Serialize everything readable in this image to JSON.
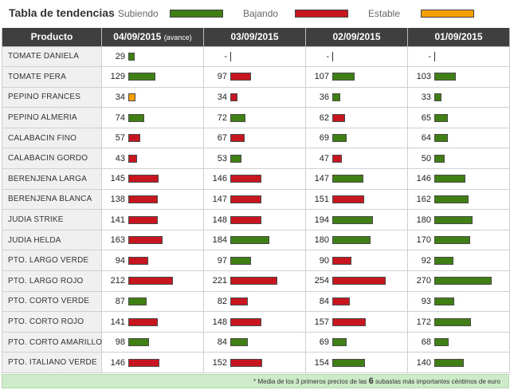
{
  "legend": {
    "title": "Tabla de tendencias",
    "up_label": "Subiendo",
    "down_label": "Bajando",
    "stable_label": "Estable",
    "colors": {
      "up": "#3f7f14",
      "down": "#c7161f",
      "stable": "#f5a000"
    }
  },
  "table": {
    "headers": [
      "Producto",
      "04/09/2015",
      "03/09/2015",
      "02/09/2015",
      "01/09/2015"
    ],
    "header_note": "(avance)",
    "rows": [
      {
        "name": "TOMATE DANIELA",
        "cells": [
          {
            "v": "29",
            "t": "up"
          },
          {
            "v": "-",
            "t": "none"
          },
          {
            "v": "-",
            "t": "none"
          },
          {
            "v": "-",
            "t": "none"
          }
        ]
      },
      {
        "name": "TOMATE PERA",
        "cells": [
          {
            "v": "129",
            "t": "up"
          },
          {
            "v": "97",
            "t": "down"
          },
          {
            "v": "107",
            "t": "up"
          },
          {
            "v": "103",
            "t": "up"
          }
        ]
      },
      {
        "name": "PEPINO FRANCES",
        "cells": [
          {
            "v": "34",
            "t": "stable"
          },
          {
            "v": "34",
            "t": "down"
          },
          {
            "v": "36",
            "t": "up"
          },
          {
            "v": "33",
            "t": "up"
          }
        ]
      },
      {
        "name": "PEPINO ALMERIA",
        "cells": [
          {
            "v": "74",
            "t": "up"
          },
          {
            "v": "72",
            "t": "up"
          },
          {
            "v": "62",
            "t": "down"
          },
          {
            "v": "65",
            "t": "up"
          }
        ]
      },
      {
        "name": "CALABACIN FINO",
        "cells": [
          {
            "v": "57",
            "t": "down"
          },
          {
            "v": "67",
            "t": "down"
          },
          {
            "v": "69",
            "t": "up"
          },
          {
            "v": "64",
            "t": "up"
          }
        ]
      },
      {
        "name": "CALABACIN GORDO",
        "cells": [
          {
            "v": "43",
            "t": "down"
          },
          {
            "v": "53",
            "t": "up"
          },
          {
            "v": "47",
            "t": "down"
          },
          {
            "v": "50",
            "t": "up"
          }
        ]
      },
      {
        "name": "BERENJENA LARGA",
        "cells": [
          {
            "v": "145",
            "t": "down"
          },
          {
            "v": "146",
            "t": "down"
          },
          {
            "v": "147",
            "t": "up"
          },
          {
            "v": "146",
            "t": "up"
          }
        ]
      },
      {
        "name": "BERENJENA BLANCA",
        "cells": [
          {
            "v": "138",
            "t": "down"
          },
          {
            "v": "147",
            "t": "down"
          },
          {
            "v": "151",
            "t": "down"
          },
          {
            "v": "162",
            "t": "up"
          }
        ]
      },
      {
        "name": "JUDIA STRIKE",
        "cells": [
          {
            "v": "141",
            "t": "down"
          },
          {
            "v": "148",
            "t": "down"
          },
          {
            "v": "194",
            "t": "up"
          },
          {
            "v": "180",
            "t": "up"
          }
        ]
      },
      {
        "name": "JUDIA HELDA",
        "cells": [
          {
            "v": "163",
            "t": "down"
          },
          {
            "v": "184",
            "t": "up"
          },
          {
            "v": "180",
            "t": "up"
          },
          {
            "v": "170",
            "t": "up"
          }
        ]
      },
      {
        "name": "PTO. LARGO VERDE",
        "cells": [
          {
            "v": "94",
            "t": "down"
          },
          {
            "v": "97",
            "t": "up"
          },
          {
            "v": "90",
            "t": "down"
          },
          {
            "v": "92",
            "t": "up"
          }
        ]
      },
      {
        "name": "PTO. LARGO ROJO",
        "cells": [
          {
            "v": "212",
            "t": "down"
          },
          {
            "v": "221",
            "t": "down"
          },
          {
            "v": "254",
            "t": "down"
          },
          {
            "v": "270",
            "t": "up"
          }
        ]
      },
      {
        "name": "PTO. CORTO VERDE",
        "cells": [
          {
            "v": "87",
            "t": "up"
          },
          {
            "v": "82",
            "t": "down"
          },
          {
            "v": "84",
            "t": "down"
          },
          {
            "v": "93",
            "t": "up"
          }
        ]
      },
      {
        "name": "PTO. CORTO ROJO",
        "cells": [
          {
            "v": "141",
            "t": "down"
          },
          {
            "v": "148",
            "t": "down"
          },
          {
            "v": "157",
            "t": "down"
          },
          {
            "v": "172",
            "t": "up"
          }
        ]
      },
      {
        "name": "PTO. CORTO AMARILLO",
        "cells": [
          {
            "v": "98",
            "t": "up"
          },
          {
            "v": "84",
            "t": "up"
          },
          {
            "v": "69",
            "t": "up"
          },
          {
            "v": "68",
            "t": "up"
          }
        ]
      },
      {
        "name": "PTO. ITALIANO VERDE",
        "cells": [
          {
            "v": "146",
            "t": "down"
          },
          {
            "v": "152",
            "t": "down"
          },
          {
            "v": "154",
            "t": "up"
          },
          {
            "v": "140",
            "t": "up"
          }
        ]
      }
    ]
  },
  "footer": {
    "text_before": "* Media de los 3 primeros precios de las",
    "highlight": "6",
    "text_after": "subastas más importantes céntimos de euro"
  }
}
